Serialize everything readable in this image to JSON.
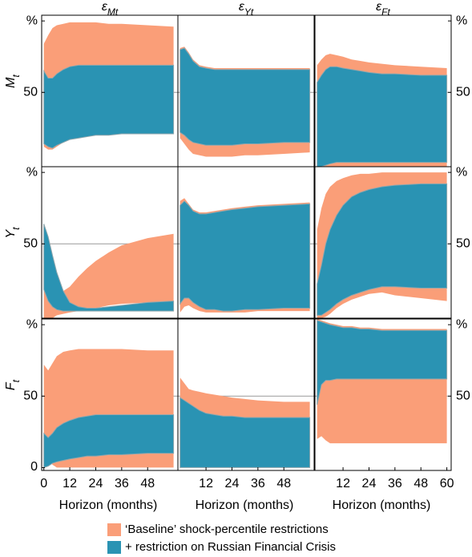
{
  "chart_data": {
    "type": "band",
    "column_titles": [
      {
        "symbol": "ε",
        "subscript": "Mt"
      },
      {
        "symbol": "ε",
        "subscript": "Yt"
      },
      {
        "symbol": "ε",
        "subscript": "Ft"
      }
    ],
    "row_titles": [
      {
        "symbol": "M",
        "subscript": "t"
      },
      {
        "symbol": "Y",
        "subscript": "t"
      },
      {
        "symbol": "F",
        "subscript": "t"
      }
    ],
    "xlabel": "Horizon (months)",
    "xlim": [
      -1,
      62
    ],
    "xticks": [
      0,
      12,
      24,
      36,
      48,
      60
    ],
    "ylim": [
      -2,
      104
    ],
    "yticks": [
      {
        "value": 100,
        "label": "%"
      },
      50,
      0
    ],
    "hline": 50,
    "legend": "bottom",
    "series": [
      {
        "name": "‘Baseline’ shock-percentile restrictions",
        "color": "#fa9e78"
      },
      {
        "name": "+ restriction on Russian Financial Crisis",
        "color": "#2a93b3"
      }
    ],
    "x": [
      0,
      2,
      4,
      6,
      9,
      12,
      16,
      20,
      24,
      30,
      36,
      48,
      60
    ],
    "panels": [
      [
        {
          "series": [
            {
              "upper": [
                84,
                90,
                95,
                97,
                98,
                99,
                99,
                99,
                99,
                98,
                98,
                97,
                96
              ],
              "lower": [
                12,
                10,
                10,
                12,
                15,
                17,
                18,
                19,
                20,
                20,
                21,
                21,
                21
              ]
            },
            {
              "upper": [
                65,
                60,
                60,
                63,
                66,
                68,
                69,
                69,
                69,
                69,
                69,
                69,
                69
              ],
              "lower": [
                14,
                12,
                11,
                13,
                15,
                17,
                18,
                19,
                20,
                20,
                21,
                21,
                21
              ]
            }
          ]
        },
        {
          "series": [
            {
              "upper": [
                81,
                82,
                78,
                73,
                69,
                68,
                67,
                67,
                67,
                67,
                67,
                67,
                67
              ],
              "lower": [
                18,
                14,
                10,
                7,
                6,
                5,
                5,
                5,
                5,
                6,
                6,
                7,
                8
              ]
            },
            {
              "upper": [
                80,
                81,
                77,
                72,
                68,
                67,
                66,
                66,
                66,
                66,
                66,
                66,
                66
              ],
              "lower": [
                22,
                20,
                17,
                15,
                14,
                13,
                13,
                13,
                13,
                14,
                14,
                15,
                15
              ]
            }
          ]
        },
        {
          "series": [
            {
              "upper": [
                69,
                73,
                76,
                77,
                76,
                75,
                73,
                72,
                71,
                70,
                69,
                68,
                67
              ],
              "lower": [
                -2,
                -2,
                -2,
                -2,
                -2,
                -2,
                -2,
                -2,
                -2,
                -2,
                -2,
                -2,
                -2
              ]
            },
            {
              "upper": [
                57,
                62,
                66,
                68,
                68,
                67,
                66,
                65,
                64,
                63,
                63,
                62,
                62
              ],
              "lower": [
                -2,
                -2,
                -1,
                0,
                1,
                1,
                1,
                1,
                1,
                1,
                1,
                1,
                1
              ]
            }
          ]
        }
      ],
      [
        {
          "series": [
            {
              "upper": [
                34,
                28,
                22,
                17,
                17,
                20,
                27,
                33,
                38,
                44,
                49,
                54,
                57
              ],
              "lower": [
                -2,
                -2,
                -2,
                0,
                1,
                2,
                3,
                4,
                5,
                7,
                8,
                9,
                10
              ]
            },
            {
              "upper": [
                64,
                55,
                42,
                30,
                17,
                9,
                6,
                5,
                5,
                6,
                7,
                9,
                10
              ],
              "lower": [
                18,
                10,
                6,
                4,
                3,
                3,
                3,
                3,
                3,
                3,
                3,
                3,
                3
              ]
            }
          ]
        },
        {
          "series": [
            {
              "upper": [
                80,
                82,
                78,
                74,
                72,
                72,
                73,
                74,
                75,
                76,
                77,
                78,
                79
              ],
              "lower": [
                2,
                6,
                7,
                5,
                3,
                2,
                2,
                2,
                2,
                2,
                3,
                3,
                3
              ]
            },
            {
              "upper": [
                77,
                80,
                77,
                73,
                71,
                71,
                72,
                73,
                74,
                75,
                76,
                77,
                78
              ],
              "lower": [
                8,
                12,
                12,
                9,
                6,
                4,
                4,
                3,
                3,
                4,
                4,
                5,
                5
              ]
            }
          ]
        },
        {
          "series": [
            {
              "upper": [
                60,
                75,
                85,
                90,
                94,
                96,
                98,
                99,
                99,
                100,
                100,
                100,
                100
              ],
              "lower": [
                -2,
                -2,
                -1,
                1,
                5,
                8,
                11,
                13,
                15,
                16,
                14,
                12,
                10
              ]
            },
            {
              "upper": [
                22,
                35,
                50,
                60,
                70,
                77,
                83,
                86,
                88,
                90,
                91,
                92,
                92
              ],
              "lower": [
                0,
                0,
                2,
                4,
                8,
                11,
                14,
                16,
                18,
                20,
                20,
                19,
                19
              ]
            }
          ]
        }
      ],
      [
        {
          "series": [
            {
              "upper": [
                72,
                68,
                73,
                78,
                81,
                82,
                83,
                83,
                83,
                83,
                83,
                82,
                82
              ],
              "lower": [
                16,
                6,
                2,
                0,
                0,
                0,
                0,
                0,
                0,
                0,
                0,
                0,
                0
              ]
            },
            {
              "upper": [
                24,
                21,
                24,
                28,
                31,
                33,
                35,
                36,
                37,
                37,
                37,
                37,
                37
              ],
              "lower": [
                0,
                1,
                3,
                4,
                5,
                6,
                7,
                8,
                8,
                9,
                9,
                10,
                10
              ]
            }
          ]
        },
        {
          "series": [
            {
              "upper": [
                63,
                59,
                55,
                54,
                53,
                52,
                51,
                50,
                49,
                48,
                47,
                46,
                46
              ],
              "lower": [
                0,
                0,
                0,
                0,
                0,
                0,
                0,
                0,
                0,
                0,
                0,
                0,
                0
              ]
            },
            {
              "upper": [
                49,
                47,
                45,
                43,
                40,
                38,
                37,
                36,
                36,
                35,
                35,
                35,
                35
              ],
              "lower": [
                0,
                0,
                0,
                0,
                0,
                0,
                0,
                0,
                0,
                0,
                0,
                0,
                0
              ]
            }
          ]
        },
        {
          "series": [
            {
              "upper": [
                104,
                103,
                102,
                101,
                100,
                99,
                99,
                98,
                98,
                97,
                97,
                97,
                97
              ],
              "lower": [
                20,
                22,
                19,
                17,
                17,
                17,
                17,
                17,
                17,
                17,
                17,
                17,
                17
              ]
            },
            {
              "upper": [
                103,
                102,
                101,
                100,
                99,
                98,
                98,
                97,
                97,
                96,
                96,
                96,
                96
              ],
              "lower": [
                44,
                58,
                61,
                61,
                62,
                62,
                62,
                62,
                62,
                62,
                62,
                62,
                62
              ]
            }
          ]
        }
      ]
    ]
  }
}
